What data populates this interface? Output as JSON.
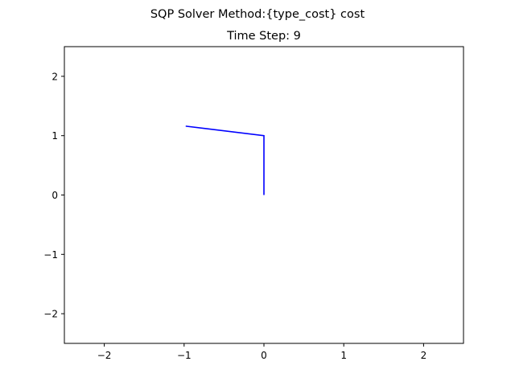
{
  "chart_data": {
    "type": "line",
    "suptitle": "SQP Solver Method:{type_cost} cost",
    "title": "Time Step: 9",
    "xlabel": "",
    "ylabel": "",
    "xlim": [
      -2.5,
      2.5
    ],
    "ylim": [
      -2.5,
      2.5
    ],
    "xticks": [
      -2,
      -1,
      0,
      1,
      2
    ],
    "yticks": [
      -2,
      -1,
      0,
      1,
      2
    ],
    "xtick_labels": [
      "−2",
      "−1",
      "0",
      "1",
      "2"
    ],
    "ytick_labels": [
      "−2",
      "−1",
      "0",
      "1",
      "2"
    ],
    "grid": false,
    "legend": "none",
    "series": [
      {
        "color": "#0000ff",
        "x": [
          0.0,
          0.0,
          -0.98
        ],
        "y": [
          0.0,
          1.0,
          1.16
        ]
      }
    ]
  }
}
